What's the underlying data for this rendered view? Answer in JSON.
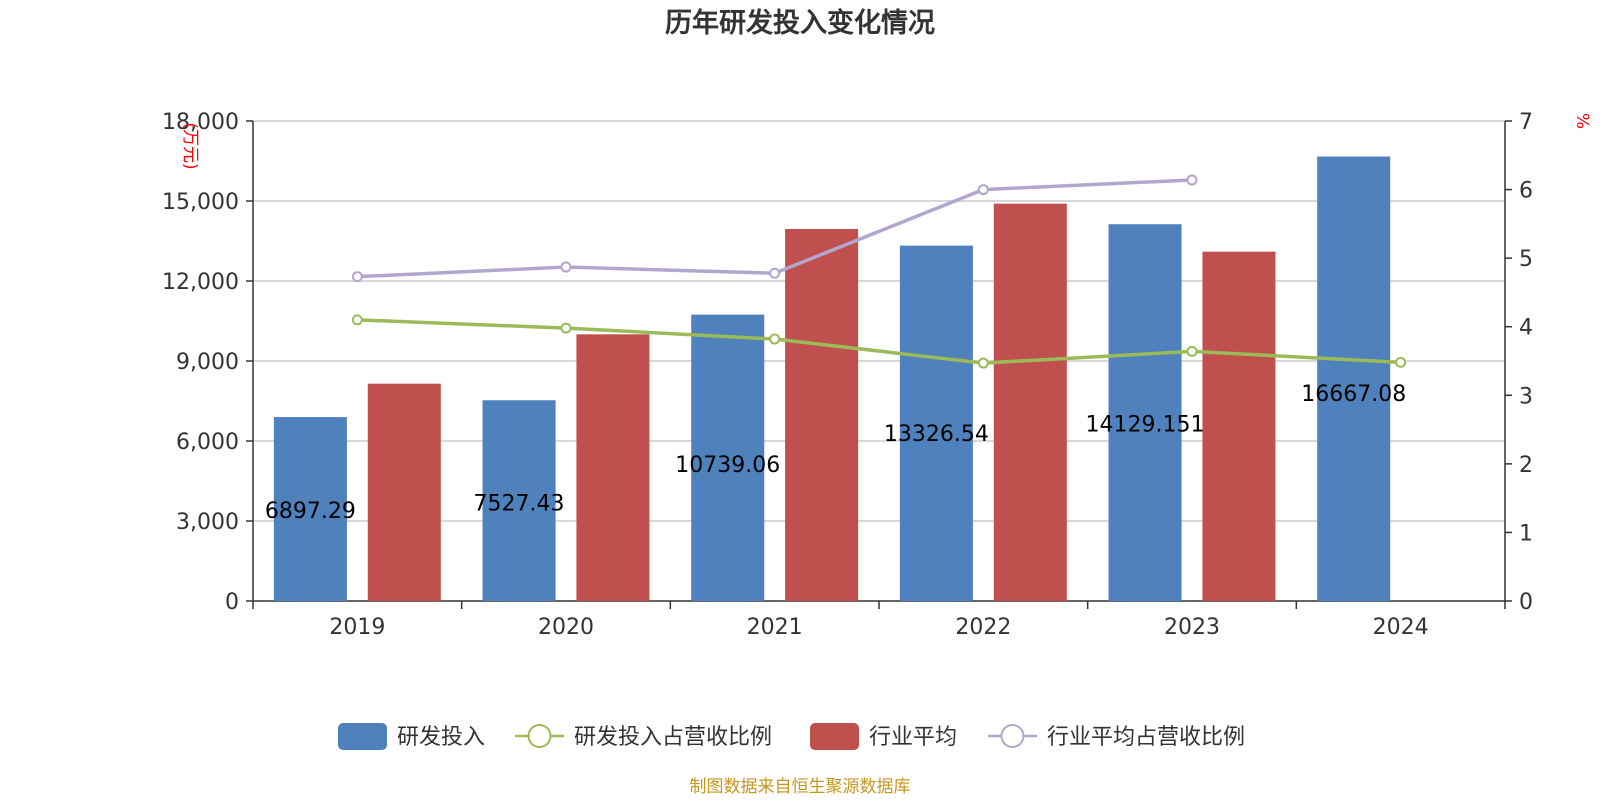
{
  "chart_data": {
    "type": "bar",
    "title": "历年研发投入变化情况",
    "categories": [
      "2019",
      "2020",
      "2021",
      "2022",
      "2023",
      "2024"
    ],
    "y_left": {
      "unit_label": "(万元)",
      "ylim": [
        0,
        18000
      ],
      "ticks": [
        "0",
        "3,000",
        "6,000",
        "9,000",
        "12,000",
        "15,000",
        "18,000"
      ]
    },
    "y_right": {
      "unit_label": "%",
      "ylim": [
        0,
        7
      ],
      "ticks": [
        "0",
        "1",
        "2",
        "3",
        "4",
        "5",
        "6",
        "7"
      ]
    },
    "series": [
      {
        "name": "研发投入",
        "kind": "bar",
        "axis": "left",
        "color": "#4f81bd",
        "values": [
          6897.29,
          7527.43,
          10739.06,
          13326.54,
          14129.151,
          16667.08
        ],
        "labels": [
          "6897.29",
          "7527.43",
          "10739.06",
          "13326.54",
          "14129.151",
          "16667.08"
        ]
      },
      {
        "name": "行业平均",
        "kind": "bar",
        "axis": "left",
        "color": "#c0504d",
        "values": [
          8150,
          10000,
          13950,
          14900,
          13100,
          null
        ]
      },
      {
        "name": "研发投入占营收比例",
        "kind": "line",
        "axis": "right",
        "color": "#9bbb59",
        "values": [
          4.1,
          3.98,
          3.82,
          3.47,
          3.64,
          3.48
        ]
      },
      {
        "name": "行业平均占营收比例",
        "kind": "line",
        "axis": "right",
        "color": "#b3a6ce",
        "values": [
          4.73,
          4.87,
          4.78,
          6.0,
          6.14,
          null
        ]
      }
    ],
    "legend_position": "bottom",
    "grid": true
  },
  "footer": {
    "source": "制图数据来自恒生聚源数据库"
  }
}
